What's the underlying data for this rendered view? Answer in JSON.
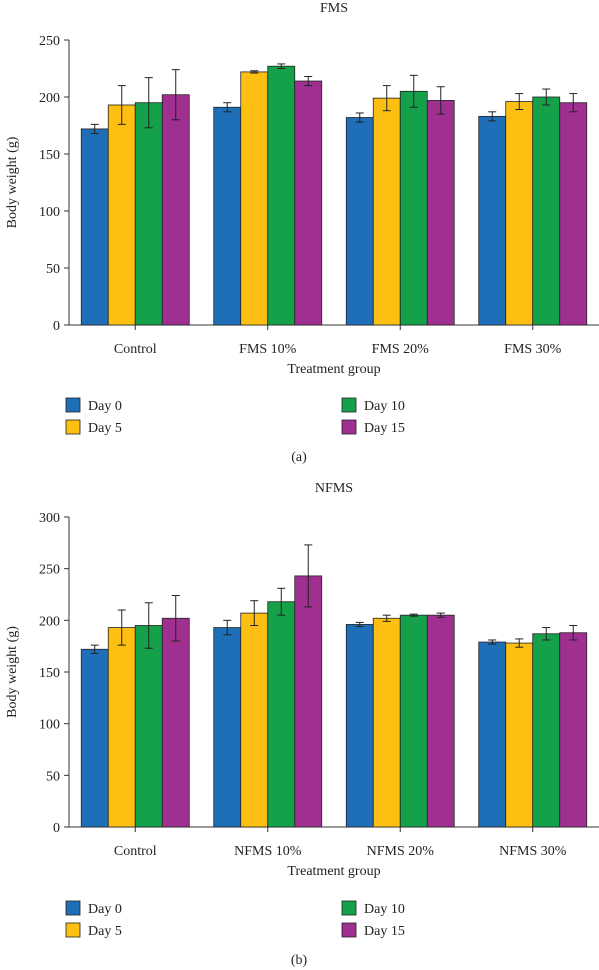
{
  "colors": {
    "Day 0": "#1f6fb8",
    "Day 5": "#fdbf11",
    "Day 10": "#15a04a",
    "Day 15": "#a0308f",
    "axis": "#333333"
  },
  "chart_data": [
    {
      "type": "bar",
      "title": "FMS",
      "xlabel": "Treatment group",
      "ylabel": "Body weight (g)",
      "ylim": [
        0,
        250
      ],
      "yticks": [
        0,
        50,
        100,
        150,
        200,
        250
      ],
      "categories": [
        "Control",
        "FMS 10%",
        "FMS 20%",
        "FMS 30%"
      ],
      "series": [
        {
          "name": "Day 0",
          "values": [
            172,
            191,
            182,
            183
          ],
          "errors": [
            4,
            4,
            4,
            4
          ]
        },
        {
          "name": "Day 5",
          "values": [
            193,
            222,
            199,
            196
          ],
          "errors": [
            17,
            1,
            11,
            7
          ]
        },
        {
          "name": "Day 10",
          "values": [
            195,
            227,
            205,
            200
          ],
          "errors": [
            22,
            2,
            14,
            7
          ]
        },
        {
          "name": "Day 15",
          "values": [
            202,
            214,
            197,
            195
          ],
          "errors": [
            22,
            4,
            12,
            8
          ]
        }
      ],
      "legend_position": "bottom",
      "panel_label": "(a)"
    },
    {
      "type": "bar",
      "title": "NFMS",
      "xlabel": "Treatment group",
      "ylabel": "Body weight (g)",
      "ylim": [
        0,
        300
      ],
      "yticks": [
        0,
        50,
        100,
        150,
        200,
        250,
        300
      ],
      "categories": [
        "Control",
        "NFMS 10%",
        "NFMS 20%",
        "NFMS 30%"
      ],
      "series": [
        {
          "name": "Day 0",
          "values": [
            172,
            193,
            196,
            179
          ],
          "errors": [
            4,
            7,
            2,
            2
          ]
        },
        {
          "name": "Day 5",
          "values": [
            193,
            207,
            202,
            178
          ],
          "errors": [
            17,
            12,
            3,
            4
          ]
        },
        {
          "name": "Day 10",
          "values": [
            195,
            218,
            205,
            187
          ],
          "errors": [
            22,
            13,
            1,
            6
          ]
        },
        {
          "name": "Day 15",
          "values": [
            202,
            243,
            205,
            188
          ],
          "errors": [
            22,
            30,
            2,
            7
          ]
        }
      ],
      "legend_position": "bottom",
      "panel_label": "(b)"
    }
  ]
}
